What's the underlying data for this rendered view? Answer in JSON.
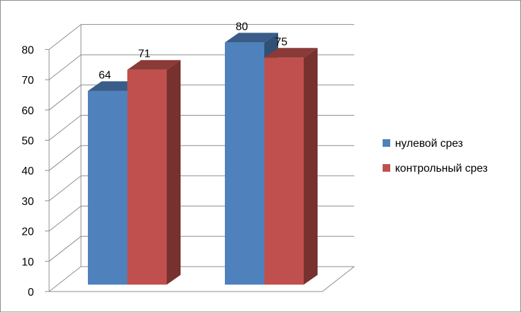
{
  "chart_data": {
    "type": "bar",
    "title": "",
    "xlabel": "",
    "ylabel": "",
    "ylim": [
      0,
      80
    ],
    "yticks": [
      0,
      10,
      20,
      30,
      40,
      50,
      60,
      70,
      80
    ],
    "grid": true,
    "legend_position": "right",
    "three_d": true,
    "categories": [
      "",
      ""
    ],
    "series": [
      {
        "name": "нулевой срез",
        "values": [
          64,
          80
        ],
        "color": "#4f81bd"
      },
      {
        "name": "контрольный срез",
        "values": [
          71,
          75
        ],
        "color": "#c0504d"
      }
    ]
  }
}
